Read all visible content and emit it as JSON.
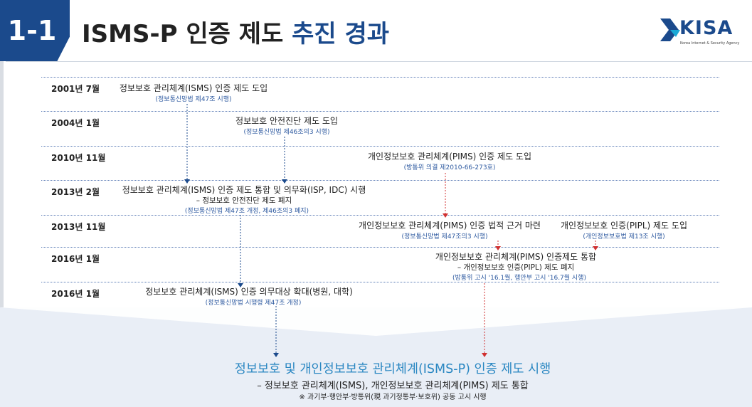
{
  "header": {
    "section_number": "1-1",
    "title_main": "ISMS-P 인증 제도 ",
    "title_accent": "추진 경과",
    "logo_text": "KISA",
    "logo_subtitle": "Korea Internet & Security Agency"
  },
  "timeline": [
    {
      "date": "2001년 7월",
      "events": [
        {
          "title": "정보보호 관리체계(ISMS) 인증 제도 도입",
          "sub": "(정보통신망법 제47조 시행)"
        }
      ]
    },
    {
      "date": "2004년 1월",
      "events": [
        {
          "title": "정보보호 안전진단 제도 도입",
          "sub": "(정보통신망법 제46조의3 시행)"
        }
      ]
    },
    {
      "date": "2010년 11월",
      "events": [
        {
          "title": "개인정보보호 관리체계(PIMS) 인증 제도 도입",
          "sub": "(방통위 의결 제2010-66-273호)"
        }
      ]
    },
    {
      "date": "2013년 2월",
      "events": [
        {
          "title": "정보보호 관리체계(ISMS) 인증 제도 통합 및 의무화(ISP, IDC) 시행",
          "detail": "– 정보보호 안전진단 제도 폐지",
          "sub": "(정보통신망법 제47조 개정, 제46조의3 폐지)"
        }
      ]
    },
    {
      "date": "2013년 11월",
      "events": [
        {
          "title": "개인정보보호 관리체계(PIMS) 인증 법적 근거 마련",
          "sub": "(정보통신망법 제47조의3 시행)"
        },
        {
          "title": "개인정보보호 인증(PIPL) 제도 도입",
          "sub": "(개인정보보호법 제13조 시행)"
        }
      ]
    },
    {
      "date": "2016년 1월",
      "events": [
        {
          "title": "개인정보보호 관리체계(PIMS) 인증제도 통합",
          "detail": "– 개인정보보호 인증(PIPL) 제도 폐지",
          "sub": "(방통위 고시 '16.1월, 행안부 고시 '16.7월 시행)"
        }
      ]
    },
    {
      "date": "2016년 1월",
      "events": [
        {
          "title": "정보보호 관리체계(ISMS) 인증 의무대상 확대(병원, 대학)",
          "sub": "(정보통신망법 시행령 제47조 개정)"
        }
      ]
    }
  ],
  "result": {
    "title": "정보보호 및 개인정보보호 관리체계(ISMS-P) 인증 제도 시행",
    "detail": "– 정보보호 관리체계(ISMS), 개인정보보호 관리체계(PIMS) 제도 통합",
    "note": "※ 과기부·행안부·방통위(現 과기정통부·보호위) 공동 고시 시행"
  },
  "colors": {
    "brand_navy": "#1b4a8c",
    "result_blue": "#2a87c2",
    "isms_arrow": "#1b4a8c",
    "pims_arrow": "#d03030",
    "band_bg": "#e9eef6"
  }
}
